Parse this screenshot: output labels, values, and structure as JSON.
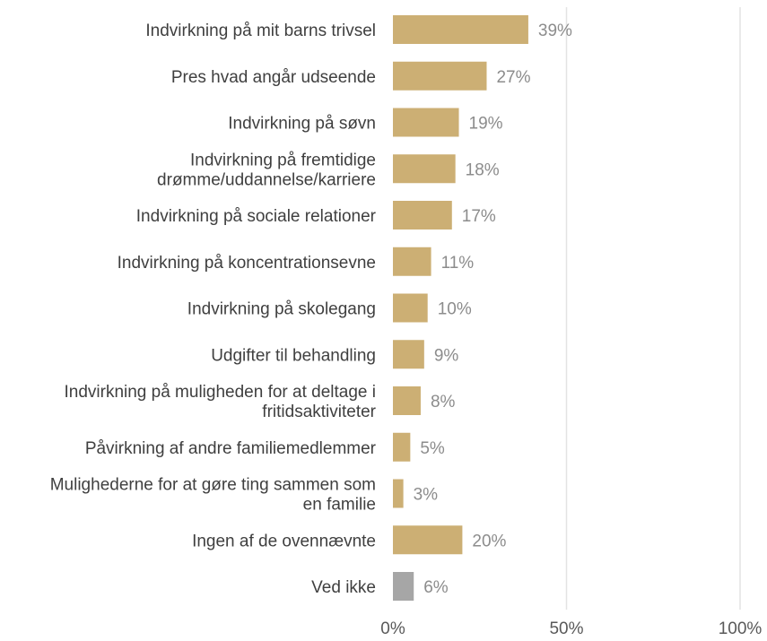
{
  "chart_data": {
    "type": "bar",
    "orientation": "horizontal",
    "title": "",
    "xlabel": "",
    "ylabel": "",
    "xlim": [
      0,
      100
    ],
    "grid": true,
    "legend": "none",
    "value_suffix": "%",
    "ticks": [
      {
        "value": 0,
        "label": "0%"
      },
      {
        "value": 50,
        "label": "50%"
      },
      {
        "value": 100,
        "label": "100%"
      }
    ],
    "colors": {
      "primary": "#CCAF74",
      "neutral": "#A6A6A6"
    },
    "categories": [
      {
        "lines": [
          "Indvirkning på mit barns trivsel"
        ],
        "value": 39,
        "label": "39%",
        "color_key": "primary"
      },
      {
        "lines": [
          "Pres hvad angår udseende"
        ],
        "value": 27,
        "label": "27%",
        "color_key": "primary"
      },
      {
        "lines": [
          "Indvirkning på søvn"
        ],
        "value": 19,
        "label": "19%",
        "color_key": "primary"
      },
      {
        "lines": [
          "Indvirkning på fremtidige",
          "drømme/uddannelse/karriere"
        ],
        "value": 18,
        "label": "18%",
        "color_key": "primary"
      },
      {
        "lines": [
          "Indvirkning på sociale relationer"
        ],
        "value": 17,
        "label": "17%",
        "color_key": "primary"
      },
      {
        "lines": [
          "Indvirkning på koncentrationsevne"
        ],
        "value": 11,
        "label": "11%",
        "color_key": "primary"
      },
      {
        "lines": [
          "Indvirkning på skolegang"
        ],
        "value": 10,
        "label": "10%",
        "color_key": "primary"
      },
      {
        "lines": [
          "Udgifter til behandling"
        ],
        "value": 9,
        "label": "9%",
        "color_key": "primary"
      },
      {
        "lines": [
          "Indvirkning på muligheden for at deltage i",
          "fritidsaktiviteter"
        ],
        "value": 8,
        "label": "8%",
        "color_key": "primary"
      },
      {
        "lines": [
          "Påvirkning af andre familiemedlemmer"
        ],
        "value": 5,
        "label": "5%",
        "color_key": "primary"
      },
      {
        "lines": [
          "Mulighederne for at gøre ting sammen som",
          "en familie"
        ],
        "value": 3,
        "label": "3%",
        "color_key": "primary"
      },
      {
        "lines": [
          "Ingen af de ovennævnte"
        ],
        "value": 20,
        "label": "20%",
        "color_key": "primary"
      },
      {
        "lines": [
          "Ved ikke"
        ],
        "value": 6,
        "label": "6%",
        "color_key": "neutral"
      }
    ]
  }
}
